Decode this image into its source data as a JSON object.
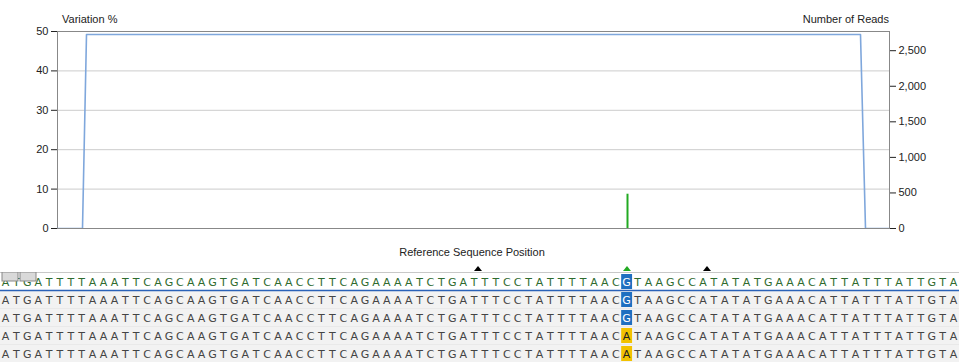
{
  "chart_data": {
    "type": "line",
    "y_label": "Variation %",
    "y2_label": "Number of Reads",
    "x_label": "Reference Sequence Position",
    "tick_labels": "y",
    "grid": true,
    "xlim": [
      0,
      832
    ],
    "ylim": [
      0,
      50
    ],
    "yticks": [
      0,
      10,
      20,
      30,
      40,
      50
    ],
    "y2lim": [
      0,
      2770
    ],
    "y2ticks": [
      0,
      500,
      {
        "value": 1000,
        "label": "1,000"
      },
      {
        "value": 1500,
        "label": "1,500"
      },
      {
        "value": 2000,
        "label": "2,000"
      },
      {
        "value": 2500,
        "label": "2,500"
      }
    ],
    "series": [
      {
        "axis": "y2",
        "type": "line",
        "color": "#7fa7dc",
        "x": [
          0,
          25,
          29,
          803,
          808,
          832
        ],
        "values": [
          0,
          0,
          2727,
          2727,
          0,
          0
        ]
      },
      {
        "axis": "y",
        "type": "bar",
        "color": "#22aa22",
        "x": [
          570
        ],
        "values": [
          8.7
        ]
      }
    ],
    "markers": [
      {
        "x": 421,
        "color": "#000000"
      },
      {
        "x": 570,
        "color": "#22aa22"
      },
      {
        "x": 650,
        "color": "#000000"
      }
    ]
  },
  "alignment": {
    "reference": "ATGATTTTAAATTCAGCAAGTGATCAACCTTCAGAAAATCTGATTTCCTATTTTAACGTAAGCCATATATGAAACATTATTTATTGTA",
    "reads": [
      "ATGATTTTAAATTCAGCAAGTGATCAACCTTCAGAAAATCTGATTTCCTATTTTAACGTAAGCCATATATGAAACATTATTTATTGTA",
      "ATGATTTTAAATTCAGCAAGTGATCAACCTTCAGAAAATCTGATTTCCTATTTTAACGTAAGCCATATATGAAACATTATTTATTGTA",
      "ATGATTTTAAATTCAGCAAGTGATCAACCTTCAGAAAATCTGATTTCCTATTTTAACATAAGCCATATATGAAACATTATTTATTGTA",
      "ATGATTTTAAATTCAGCAAGTGATCAACCTTCAGAAAATCTGATTTCCTATTTTAACATAAGCCATATATGAAACATTATTTATTGTA"
    ],
    "variant_index": 57
  }
}
